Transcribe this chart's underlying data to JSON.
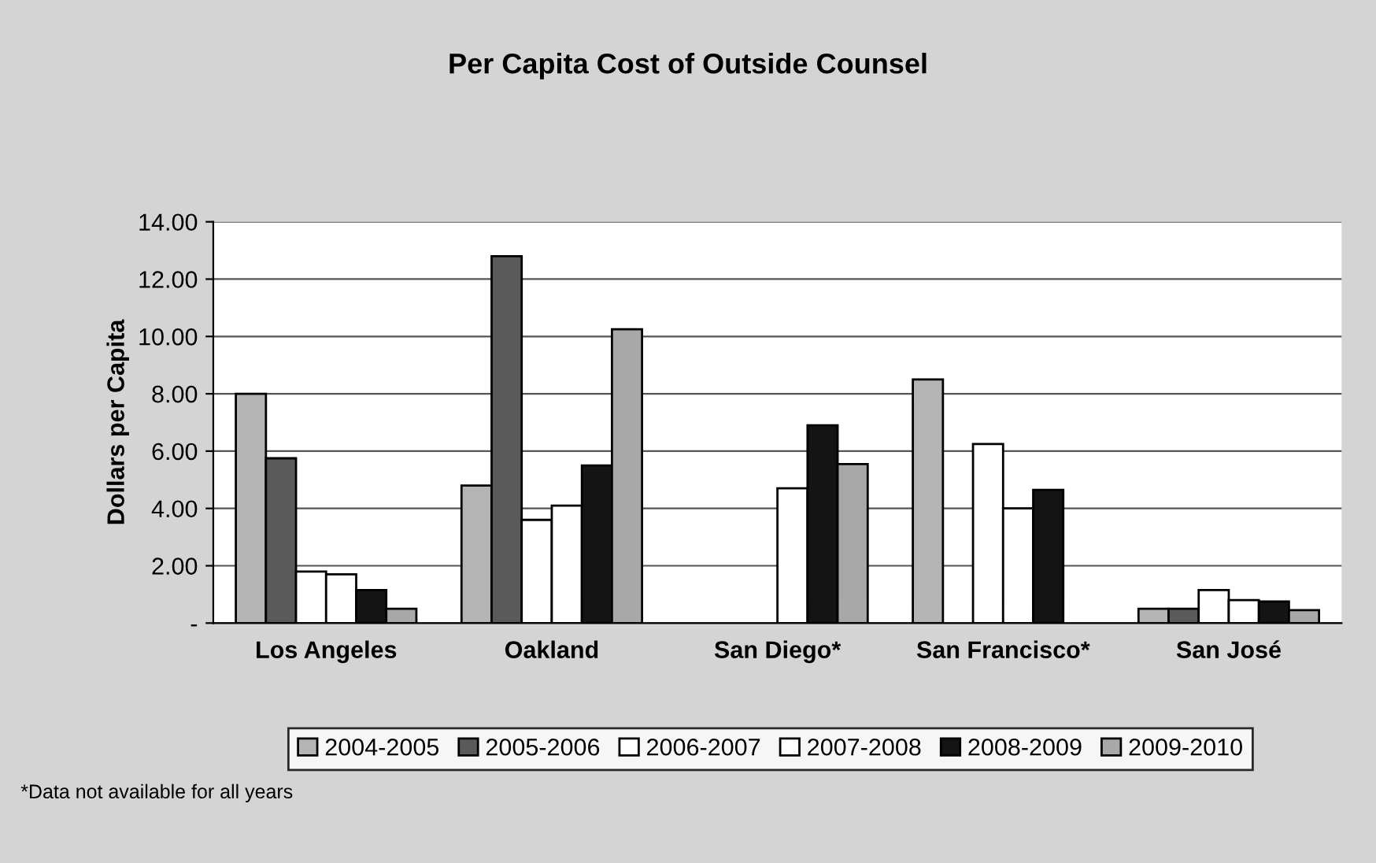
{
  "chart_data": {
    "type": "bar",
    "title": "Per Capita Cost of Outside Counsel",
    "ylabel": "Dollars per Capita",
    "categories": [
      "Los Angeles",
      "Oakland",
      "San Diego*",
      "San Francisco*",
      "San José"
    ],
    "series": [
      {
        "name": "2004-2005",
        "color": "#b4b4b4",
        "values": [
          8.0,
          4.8,
          null,
          8.5,
          0.5
        ]
      },
      {
        "name": "2005-2006",
        "color": "#5a5a5a",
        "values": [
          5.75,
          12.8,
          null,
          null,
          0.5
        ]
      },
      {
        "name": "2006-2007",
        "color": "#ffffff",
        "values": [
          1.8,
          3.6,
          null,
          6.25,
          1.15
        ]
      },
      {
        "name": "2007-2008",
        "color": "#ffffff",
        "values": [
          1.7,
          4.1,
          4.7,
          4.0,
          0.8
        ]
      },
      {
        "name": "2008-2009",
        "color": "#141414",
        "values": [
          1.15,
          5.5,
          6.9,
          4.65,
          0.75
        ]
      },
      {
        "name": "2009-2010",
        "color": "#a8a8a8",
        "values": [
          0.5,
          10.25,
          5.55,
          null,
          0.45
        ]
      }
    ],
    "ylim": [
      0,
      14
    ],
    "yticks": [
      {
        "value": 0,
        "label": "-"
      },
      {
        "value": 2,
        "label": "2.00"
      },
      {
        "value": 4,
        "label": "4.00"
      },
      {
        "value": 6,
        "label": "6.00"
      },
      {
        "value": 8,
        "label": "8.00"
      },
      {
        "value": 10,
        "label": "10.00"
      },
      {
        "value": 12,
        "label": "12.00"
      },
      {
        "value": 14,
        "label": "14.00"
      }
    ],
    "grid": "y",
    "legend": "bottom",
    "annotations": [
      "*Data not available for all years"
    ]
  }
}
